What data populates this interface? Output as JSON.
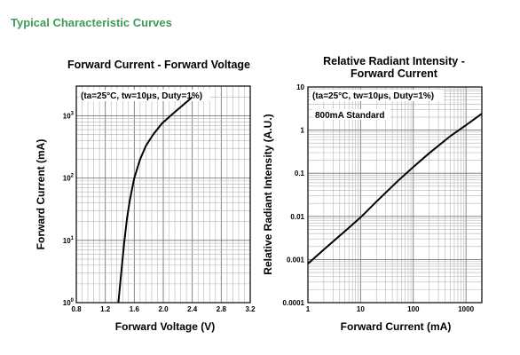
{
  "section_title": "Typical Characteristic Curves",
  "chart_data": [
    {
      "type": "line",
      "title": "Forward Current - Forward Voltage",
      "xlabel": "Forward Voltage (V)",
      "ylabel": "Forward Current (mA)",
      "xscale": "linear",
      "yscale": "log",
      "xlim": [
        0.8,
        3.2
      ],
      "ylim": [
        1,
        3000
      ],
      "xticks": [
        "0.8",
        "1.2",
        "1.6",
        "2.0",
        "2.4",
        "2.8",
        "3.2"
      ],
      "yticks": [
        {
          "base": "10",
          "exp": "0",
          "value": 1
        },
        {
          "base": "10",
          "exp": "1",
          "value": 10
        },
        {
          "base": "10",
          "exp": "2",
          "value": 100
        },
        {
          "base": "10",
          "exp": "3",
          "value": 1000
        }
      ],
      "annotation": "(ta=25°C, tw=10μs, Duty=1%)",
      "grid": true,
      "series": [
        {
          "x": [
            1.38,
            1.42,
            1.46,
            1.5,
            1.54,
            1.6,
            1.68,
            1.76,
            1.86,
            1.98,
            2.12,
            2.26,
            2.4
          ],
          "y": [
            1,
            3,
            9,
            23,
            45,
            100,
            200,
            330,
            500,
            750,
            1050,
            1450,
            2000
          ]
        }
      ]
    },
    {
      "type": "line",
      "title_lines": [
        "Relative Radiant Intensity -",
        "Forward Current"
      ],
      "xlabel": "Forward Current (mA)",
      "ylabel": "Relative Radiant Intensity (A.U.)",
      "xscale": "log",
      "yscale": "log",
      "xlim": [
        1,
        2000
      ],
      "ylim": [
        0.0001,
        10
      ],
      "xticks": [
        "1",
        "10",
        "100",
        "1000"
      ],
      "yticks": [
        "0.0001",
        "0.001",
        "0.01",
        "0.1",
        "1",
        "10"
      ],
      "annotations": [
        "(ta=25°C, tw=10μs, Duty=1%)",
        "800mA Standard"
      ],
      "grid": true,
      "series": [
        {
          "x": [
            1,
            2,
            5,
            10,
            20,
            50,
            100,
            200,
            500,
            1000,
            2000
          ],
          "y": [
            0.0008,
            0.0017,
            0.0045,
            0.0095,
            0.022,
            0.065,
            0.14,
            0.29,
            0.72,
            1.3,
            2.4
          ]
        }
      ]
    }
  ]
}
